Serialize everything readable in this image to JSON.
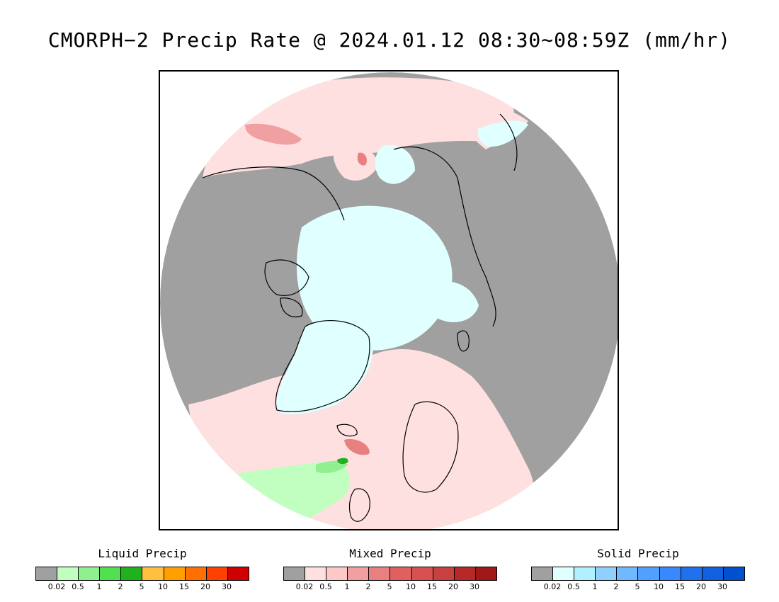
{
  "title": "CMORPH−2 Precip Rate @ 2024.01.12 08:30∼08:59Z (mm/hr)",
  "map": {
    "projection": "polar-stereographic-north",
    "no_precip_color": "#a0a0a0",
    "coastline_color": "#000000"
  },
  "legends": [
    {
      "title": "Liquid Precip",
      "colors": [
        "#a0a0a0",
        "#c0ffc0",
        "#90f090",
        "#50e050",
        "#20b020",
        "#ffc040",
        "#ffa000",
        "#ff7000",
        "#ff4000",
        "#d00000"
      ],
      "labels": [
        "0.02",
        "0.5",
        "1",
        "2",
        "5",
        "10",
        "15",
        "20",
        "30"
      ]
    },
    {
      "title": "Mixed Precip",
      "colors": [
        "#a0a0a0",
        "#ffe0e0",
        "#ffc8c8",
        "#f0a0a0",
        "#e88080",
        "#e06060",
        "#d85050",
        "#c84040",
        "#b82828",
        "#a01818"
      ],
      "labels": [
        "0.02",
        "0.5",
        "1",
        "2",
        "5",
        "10",
        "15",
        "20",
        "30"
      ]
    },
    {
      "title": "Solid Precip",
      "colors": [
        "#a0a0a0",
        "#e0ffff",
        "#b0f0ff",
        "#90d0ff",
        "#70b8ff",
        "#50a0ff",
        "#3888ff",
        "#2070f0",
        "#1060e0",
        "#0050d0"
      ],
      "labels": [
        "0.02",
        "0.5",
        "1",
        "2",
        "5",
        "10",
        "15",
        "20",
        "30"
      ]
    }
  ]
}
